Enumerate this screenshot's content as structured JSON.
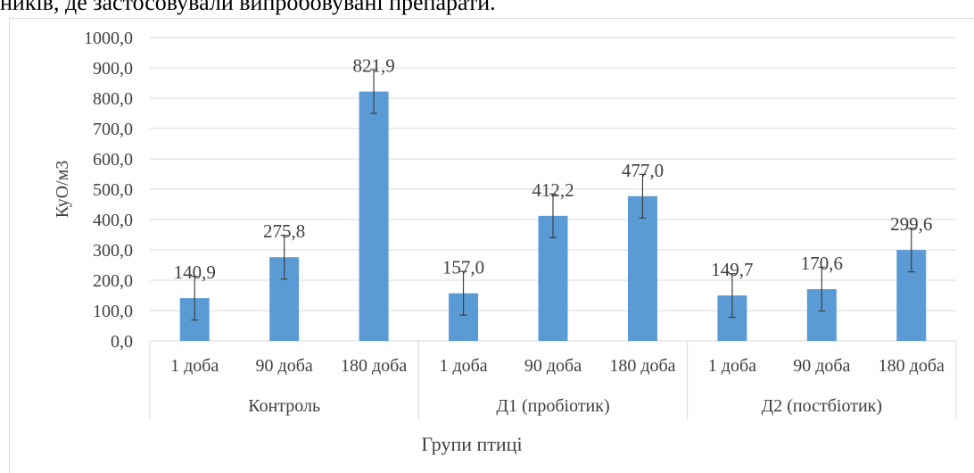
{
  "top_text": "ників, де застосовували випробовувані препарати.",
  "colors": {
    "bar": "#5b9bd5",
    "grid": "#d9d9d9",
    "error": "#404040"
  },
  "chart_data": {
    "type": "bar",
    "ylabel": "КуО/м3",
    "xlabel": "Групи птиці",
    "ylim": [
      0,
      1000
    ],
    "y_ticks": [
      "0,0",
      "100,0",
      "200,0",
      "300,0",
      "400,0",
      "500,0",
      "600,0",
      "700,0",
      "800,0",
      "900,0",
      "1000,0"
    ],
    "grid": true,
    "groups": [
      "Контроль",
      "Д1 (пробіотик)",
      "Д2 (постбіотик)"
    ],
    "categories": [
      "1 доба",
      "90 доба",
      "180 доба",
      "1 доба",
      "90 доба",
      "180 доба",
      "1 доба",
      "90 доба",
      "180 доба"
    ],
    "values": [
      140.9,
      275.8,
      821.9,
      157.0,
      412.2,
      477.0,
      149.7,
      170.6,
      299.6
    ],
    "value_labels": [
      "140,9",
      "275,8",
      "821,9",
      "157,0",
      "412,2",
      "477,0",
      "149,7",
      "170,6",
      "299,6"
    ],
    "error": [
      72,
      72,
      72,
      72,
      72,
      72,
      72,
      72,
      72
    ]
  }
}
